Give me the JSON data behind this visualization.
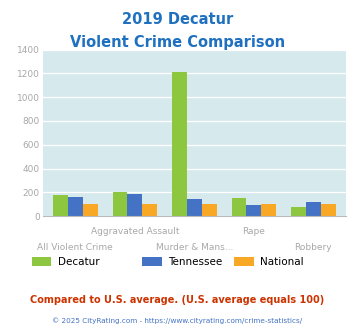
{
  "title_line1": "2019 Decatur",
  "title_line2": "Violent Crime Comparison",
  "title_color": "#2070c0",
  "categories": [
    "All Violent Crime",
    "Aggravated Assault",
    "Murder & Mans...",
    "Rape",
    "Robbery"
  ],
  "series": {
    "Decatur": [
      180,
      200,
      1210,
      150,
      80
    ],
    "Tennessee": [
      163,
      185,
      148,
      93,
      115
    ],
    "National": [
      100,
      100,
      100,
      100,
      100
    ]
  },
  "colors": {
    "Decatur": "#8dc63f",
    "Tennessee": "#4472c4",
    "National": "#f9a825"
  },
  "ylim": [
    0,
    1400
  ],
  "yticks": [
    0,
    200,
    400,
    600,
    800,
    1000,
    1200,
    1400
  ],
  "bg_color": "#d6eaee",
  "grid_color": "#ffffff",
  "axis_label_color": "#a8a8a8",
  "row1_labels": {
    "1": "Aggravated Assault",
    "3": "Rape"
  },
  "row2_labels": {
    "0": "All Violent Crime",
    "2": "Murder & Mans...",
    "4": "Robbery"
  },
  "legend_items": [
    "Decatur",
    "Tennessee",
    "National"
  ],
  "footnote1": "Compared to U.S. average. (U.S. average equals 100)",
  "footnote2": "© 2025 CityRating.com - https://www.cityrating.com/crime-statistics/",
  "footnote1_color": "#cc3300",
  "footnote2_color": "#4472c4",
  "bar_width": 0.25
}
